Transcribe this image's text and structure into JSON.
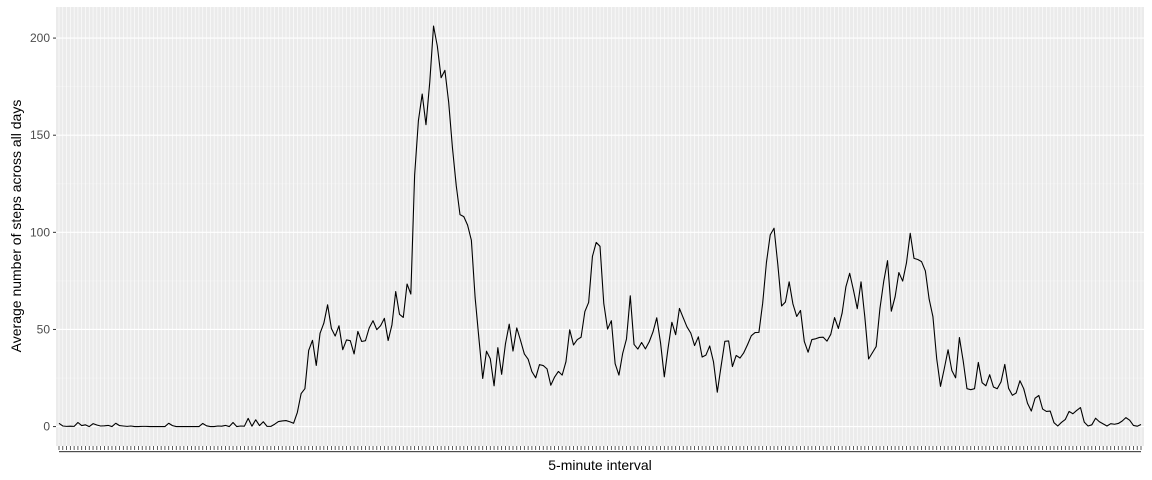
{
  "chart_data": {
    "type": "line",
    "xlabel": "5-minute interval",
    "ylabel": "Average number of steps across all days",
    "ylim": [
      -10,
      216
    ],
    "y_ticks": [
      0,
      50,
      100,
      150,
      200
    ],
    "x_tick_labels": "unreadable-dense",
    "grid": true,
    "legend": "none",
    "colors": {
      "panel": "#ebebeb",
      "grid_major": "#ffffff",
      "grid_minor": "#f3f3f3",
      "line": "#000000",
      "tick": "#333333"
    },
    "series": [
      {
        "values": [
          1.7,
          0.3,
          0.1,
          0.2,
          0.1,
          2.1,
          0.5,
          0.9,
          0,
          1.5,
          0.8,
          0.3,
          0.4,
          0.6,
          0,
          1.7,
          0.5,
          0.3,
          0.1,
          0.3,
          0,
          0,
          0.1,
          0.1,
          0,
          0,
          0,
          0,
          0,
          1.7,
          0.5,
          0,
          0,
          0,
          0,
          0,
          0,
          0,
          1.6,
          0.4,
          0,
          0,
          0.3,
          0.2,
          0.6,
          0,
          2.1,
          0,
          0.3,
          0.2,
          4.2,
          0.2,
          3.5,
          0.5,
          2.5,
          0.1,
          0.1,
          1.2,
          2.6,
          2.9,
          3.1,
          2.5,
          1.7,
          7.3,
          17.0,
          19.5,
          39.2,
          44.4,
          31.5,
          48.0,
          53.2,
          62.7,
          50.5,
          46.6,
          51.9,
          39.6,
          44.6,
          44.2,
          37.4,
          49.0,
          43.8,
          44.2,
          50.8,
          54.5,
          49.9,
          51.9,
          55.7,
          44.3,
          52.3,
          69.5,
          57.8,
          56.2,
          73.4,
          68.2,
          129.4,
          157.5,
          171.2,
          155.4,
          177.3,
          206.2,
          195.9,
          179.6,
          183.4,
          167.0,
          143.5,
          124.0,
          109.1,
          108.1,
          103.7,
          95.9,
          66.2,
          45.2,
          24.8,
          38.8,
          34.9,
          21.0,
          40.6,
          26.9,
          42.5,
          52.7,
          38.9,
          50.8,
          44.3,
          37.4,
          34.7,
          28.3,
          25.1,
          31.9,
          31.4,
          29.7,
          21.3,
          25.5,
          28.4,
          26.5,
          33.4,
          49.8,
          42.0,
          44.8,
          46.0,
          59.2,
          63.9,
          87.6,
          94.8,
          92.8,
          63.4,
          50.2,
          54.5,
          32.4,
          26.5,
          37.7,
          45.1,
          67.3,
          42.3,
          39.9,
          43.3,
          40.0,
          43.6,
          48.7,
          56.0,
          43.2,
          25.6,
          40.5,
          53.7,
          47.3,
          60.8,
          56.0,
          51.3,
          48.1,
          41.7,
          46.2,
          35.8,
          36.8,
          41.5,
          33.3,
          17.7,
          31.0,
          43.9,
          44.1,
          30.9,
          36.6,
          35.3,
          38.0,
          42.2,
          46.8,
          48.4,
          48.5,
          63.5,
          84.6,
          98.7,
          102.1,
          83.5,
          62.1,
          64.1,
          74.5,
          63.1,
          56.7,
          59.8,
          43.8,
          38.3,
          44.8,
          45.2,
          45.9,
          46.0,
          44.0,
          47.5,
          56.1,
          50.5,
          58.5,
          72.0,
          78.9,
          70.2,
          60.7,
          74.5,
          56.4,
          34.8,
          38.0,
          41.2,
          60.9,
          74.8,
          85.4,
          59.4,
          66.8,
          79.3,
          74.9,
          84.2,
          99.5,
          86.6,
          86.0,
          84.9,
          80.1,
          65.6,
          56.6,
          34.9,
          20.7,
          29.8,
          39.5,
          28.9,
          25.1,
          45.8,
          33.8,
          19.5,
          19.0,
          19.5,
          33.0,
          22.6,
          21.0,
          26.7,
          20.4,
          19.5,
          23.0,
          32.0,
          19.7,
          16.1,
          17.3,
          23.6,
          19.5,
          12.0,
          8.0,
          14.6,
          16.0,
          9.0,
          7.8,
          8.0,
          2.0,
          0.3,
          2.2,
          3.7,
          7.8,
          6.6,
          8.3,
          9.8,
          2.3,
          0.3,
          0.9,
          4.3,
          2.5,
          1.4,
          0.3,
          1.5,
          1.2,
          1.6,
          2.8,
          4.6,
          3.3,
          0.6,
          0.2,
          1.1
        ]
      }
    ]
  }
}
